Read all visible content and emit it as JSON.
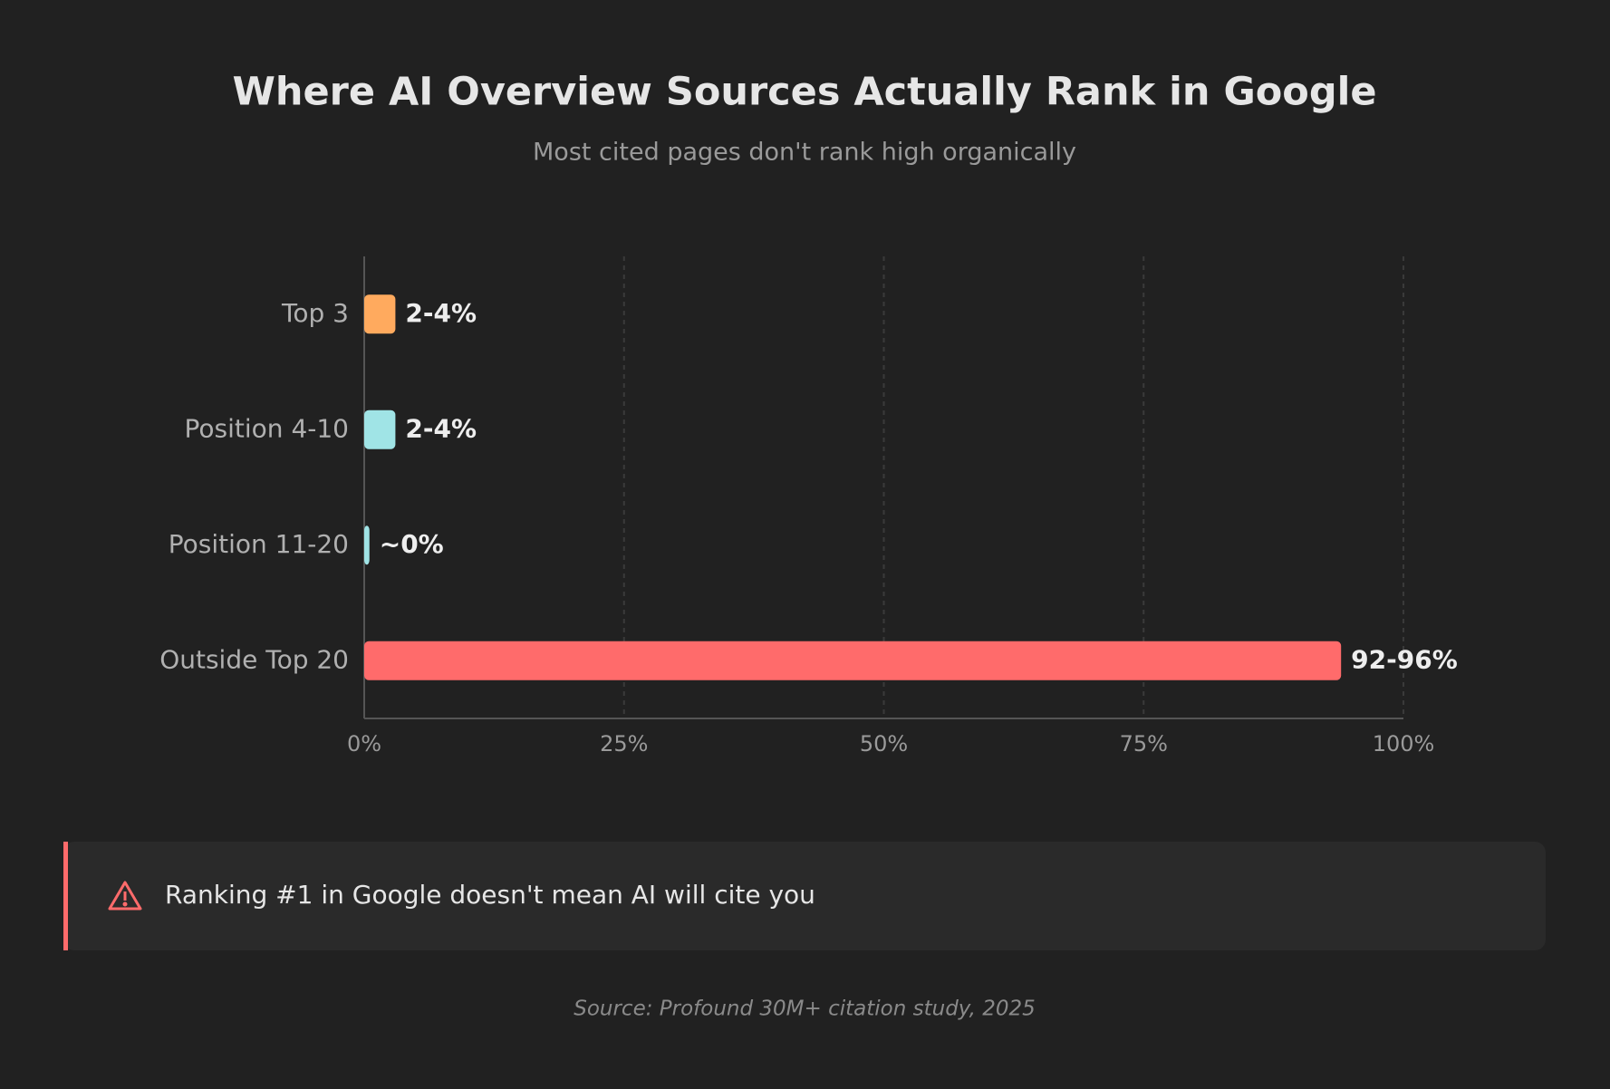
{
  "chart_data": {
    "type": "bar",
    "orientation": "horizontal",
    "title": "Where AI Overview Sources Actually Rank in Google",
    "subtitle": "Most cited pages don't rank high organically",
    "categories": [
      "Top 3",
      "Position 4-10",
      "Position 11-20",
      "Outside Top 20"
    ],
    "values": [
      3,
      3,
      0.5,
      94
    ],
    "value_labels": [
      "2-4%",
      "2-4%",
      "~0%",
      "92-96%"
    ],
    "colors": [
      "#ffaa5e",
      "#a0e4e6",
      "#a0e4e6",
      "#ff6b6b"
    ],
    "xlim": [
      0,
      100
    ],
    "xticks": [
      {
        "value": 0,
        "label": "0%"
      },
      {
        "value": 25,
        "label": "25%"
      },
      {
        "value": 50,
        "label": "50%"
      },
      {
        "value": 75,
        "label": "75%"
      },
      {
        "value": 100,
        "label": "100%"
      }
    ],
    "grid": true,
    "annotation": "Ranking #1 in Google doesn't mean AI will cite you",
    "source": "Source: Profound 30M+ citation study, 2025"
  }
}
